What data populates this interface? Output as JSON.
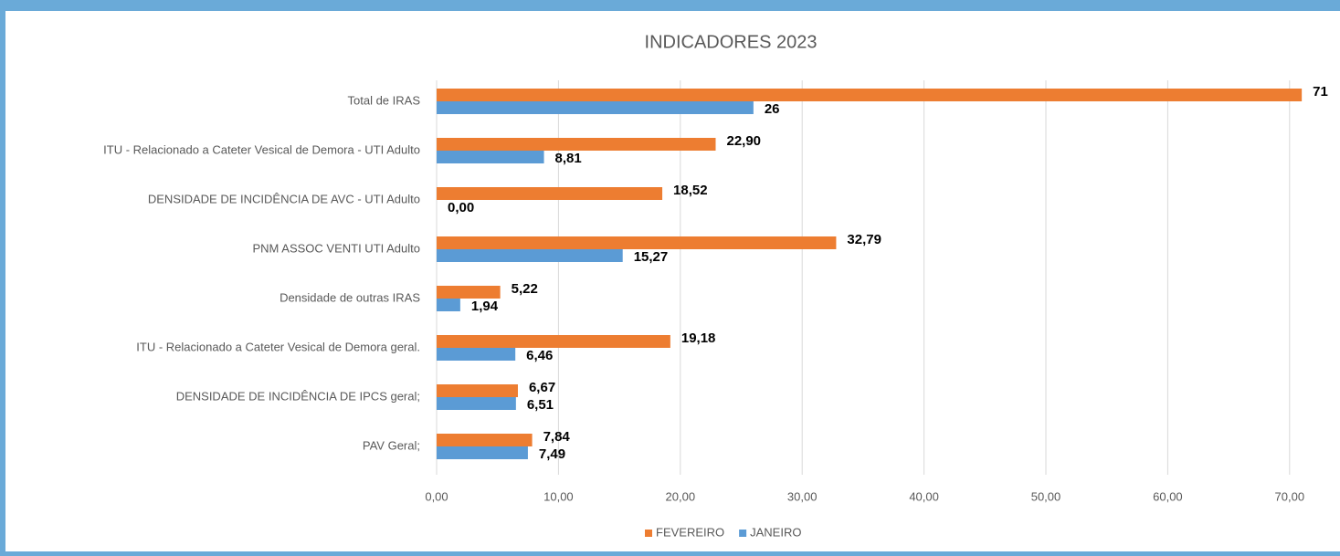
{
  "chart_data": {
    "type": "hbar",
    "title": "INDICADORES 2023",
    "categories": [
      "Total de IRAS",
      "ITU - Relacionado a Cateter Vesical de Demora - UTI Adulto",
      "DENSIDADE DE INCIDÊNCIA DE AVC - UTI Adulto",
      "PNM ASSOC VENTI UTI Adulto",
      "Densidade de outras IRAS",
      "ITU - Relacionado a Cateter Vesical de Demora geral.",
      "DENSIDADE DE INCIDÊNCIA DE IPCS geral;",
      "PAV Geral;"
    ],
    "series": [
      {
        "name": "FEVEREIRO",
        "color": "#ed7d31",
        "values": [
          71,
          22.9,
          18.52,
          32.79,
          5.22,
          19.18,
          6.67,
          7.84
        ],
        "value_labels": [
          "71",
          "22,90",
          "18,52",
          "32,79",
          "5,22",
          "19,18",
          "6,67",
          "7,84"
        ]
      },
      {
        "name": "JANEIRO",
        "color": "#5b9bd5",
        "values": [
          26,
          8.81,
          0.0,
          15.27,
          1.94,
          6.46,
          6.51,
          7.49
        ],
        "value_labels": [
          "26",
          "8,81",
          "0,00",
          "15,27",
          "1,94",
          "6,46",
          "6,51",
          "7,49"
        ]
      }
    ],
    "xlim": [
      0,
      71.5
    ],
    "xticks": [
      {
        "value": 0,
        "label": "0,00"
      },
      {
        "value": 10,
        "label": "10,00"
      },
      {
        "value": 20,
        "label": "20,00"
      },
      {
        "value": 30,
        "label": "30,00"
      },
      {
        "value": 40,
        "label": "40,00"
      },
      {
        "value": 50,
        "label": "50,00"
      },
      {
        "value": 60,
        "label": "60,00"
      },
      {
        "value": 70,
        "label": "70,00"
      }
    ],
    "grid": true,
    "legend": "bottom"
  }
}
